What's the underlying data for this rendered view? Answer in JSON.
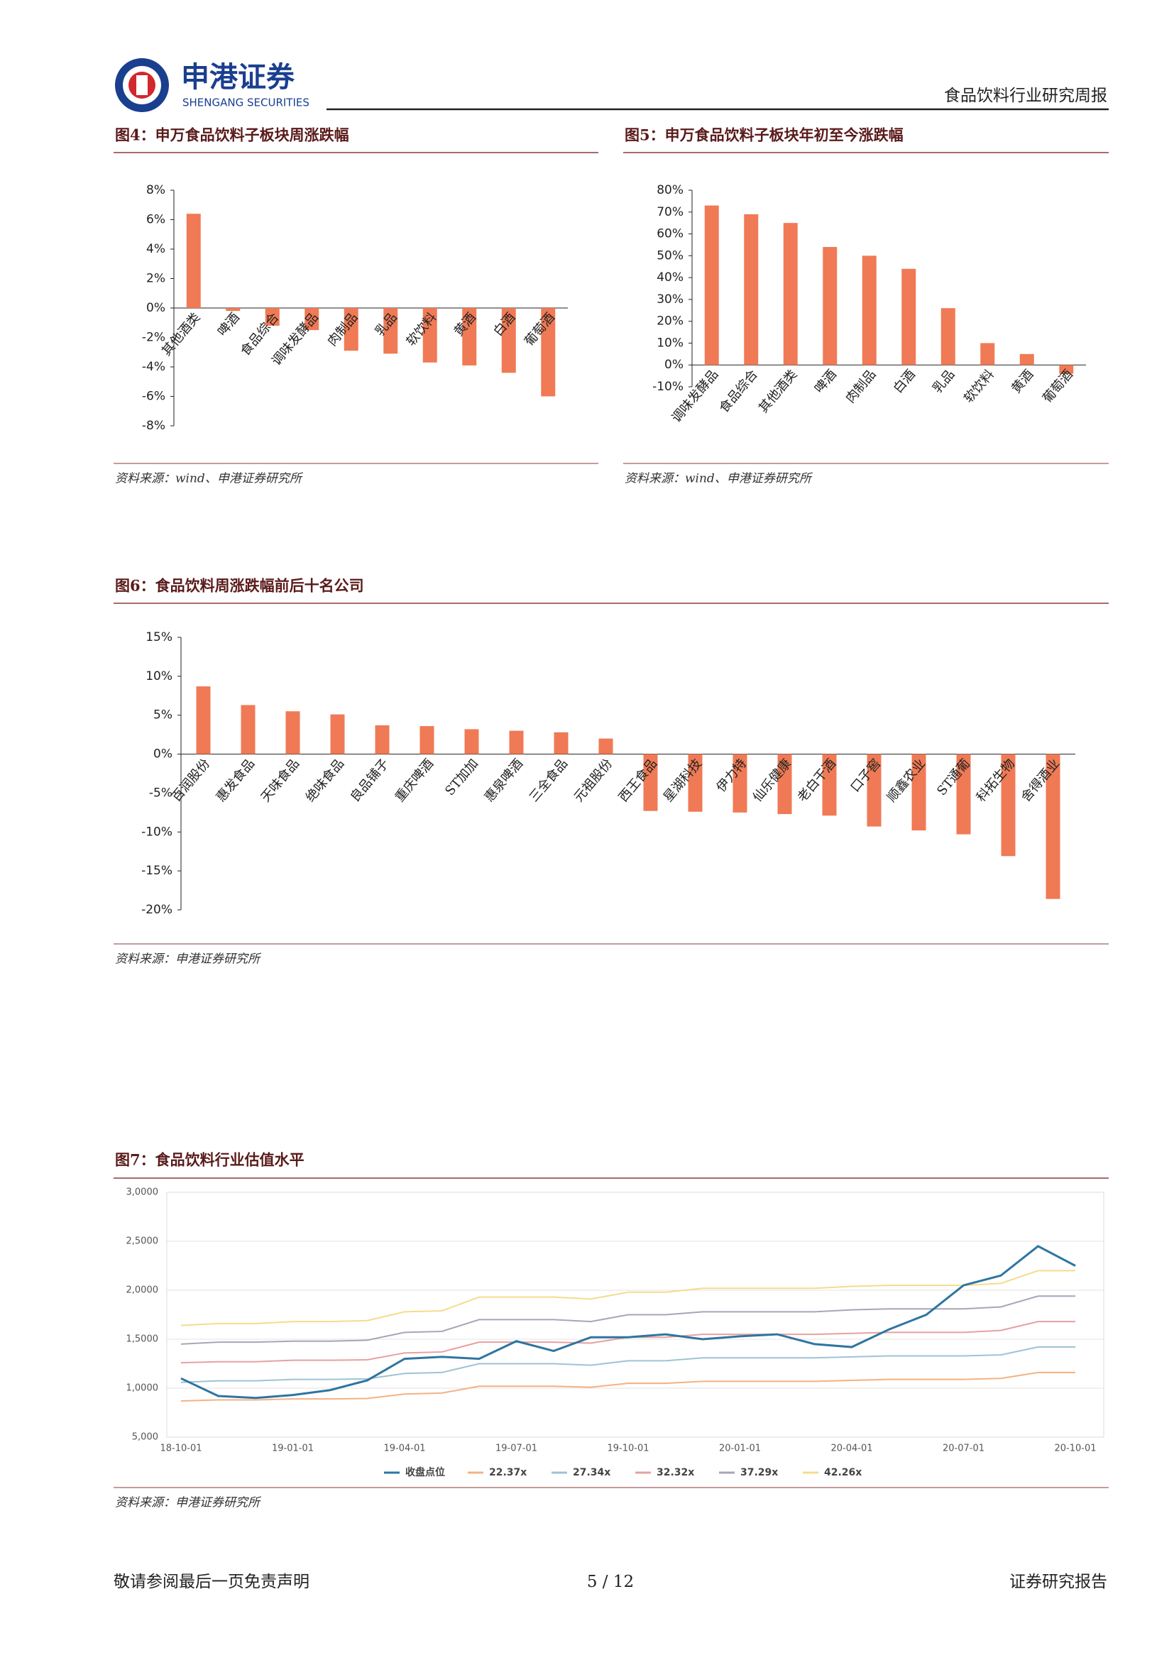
{
  "header": {
    "company": "申港证券",
    "company_en": "SHENGANG SECURITIES",
    "report": "食品饮料行业研究周报"
  },
  "chart_data": [
    {
      "type": "bar",
      "title": "图4：申万食品饮料子板块周涨跌幅",
      "source": "资料来源：wind、申港证券研究所",
      "categories": [
        "其他酒类",
        "啤酒",
        "食品综合",
        "调味发酵品",
        "肉制品",
        "乳品",
        "软饮料",
        "黄酒",
        "白酒",
        "葡萄酒"
      ],
      "values": [
        6.4,
        -0.2,
        -1.2,
        -1.5,
        -2.9,
        -3.1,
        -3.7,
        -3.9,
        -4.4,
        -6.0
      ],
      "color": "#ef7a55",
      "ylim": [
        -8,
        8
      ],
      "yticks": [
        {
          "value": -8,
          "label": "-8%"
        },
        {
          "value": -6,
          "label": "-6%"
        },
        {
          "value": -4,
          "label": "-4%"
        },
        {
          "value": -2,
          "label": "-2%"
        },
        {
          "value": 0,
          "label": "0%"
        },
        {
          "value": 2,
          "label": "2%"
        },
        {
          "value": 4,
          "label": "4%"
        },
        {
          "value": 6,
          "label": "6%"
        },
        {
          "value": 8,
          "label": "8%"
        }
      ]
    },
    {
      "type": "bar",
      "title": "图5：申万食品饮料子板块年初至今涨跌幅",
      "source": "资料来源：wind、申港证券研究所",
      "categories": [
        "调味发酵品",
        "食品综合",
        "其他酒类",
        "啤酒",
        "肉制品",
        "白酒",
        "乳品",
        "软饮料",
        "黄酒",
        "葡萄酒"
      ],
      "values": [
        73,
        69,
        65,
        54,
        50,
        44,
        26,
        10,
        5,
        -4
      ],
      "color": "#ef7a55",
      "ylim": [
        -10,
        80
      ],
      "yticks": [
        {
          "value": -10,
          "label": "-10%"
        },
        {
          "value": 0,
          "label": "0%"
        },
        {
          "value": 10,
          "label": "10%"
        },
        {
          "value": 20,
          "label": "20%"
        },
        {
          "value": 30,
          "label": "30%"
        },
        {
          "value": 40,
          "label": "40%"
        },
        {
          "value": 50,
          "label": "50%"
        },
        {
          "value": 60,
          "label": "60%"
        },
        {
          "value": 70,
          "label": "70%"
        },
        {
          "value": 80,
          "label": "80%"
        }
      ]
    },
    {
      "type": "bar",
      "title": "图6：食品饮料周涨跌幅前后十名公司",
      "source": "资料来源：申港证券研究所",
      "categories": [
        "百润股份",
        "惠发食品",
        "天味食品",
        "绝味食品",
        "良品铺子",
        "重庆啤酒",
        "ST加加",
        "惠泉啤酒",
        "三全食品",
        "元祖股份",
        "西王食品",
        "星湖科技",
        "伊力特",
        "仙乐健康",
        "老白干酒",
        "口子窖",
        "顺鑫农业",
        "ST通葡",
        "科拓生物",
        "舍得酒业"
      ],
      "values": [
        8.7,
        6.3,
        5.5,
        5.1,
        3.7,
        3.6,
        3.2,
        3.0,
        2.8,
        2.0,
        -7.3,
        -7.4,
        -7.5,
        -7.7,
        -7.9,
        -9.3,
        -9.8,
        -10.3,
        -13.1,
        -18.6
      ],
      "color": "#ef7a55",
      "ylim": [
        -20,
        15
      ],
      "yticks": [
        {
          "value": -20,
          "label": "-20%"
        },
        {
          "value": -15,
          "label": "-15%"
        },
        {
          "value": -10,
          "label": "-10%"
        },
        {
          "value": -5,
          "label": "-5%"
        },
        {
          "value": 0,
          "label": "0%"
        },
        {
          "value": 5,
          "label": "5%"
        },
        {
          "value": 10,
          "label": "10%"
        },
        {
          "value": 15,
          "label": "15%"
        }
      ]
    },
    {
      "type": "line",
      "title": "图7：食品饮料行业估值水平",
      "source": "资料来源：申港证券研究所",
      "x": [
        "18-10-01",
        null,
        null,
        "19-01-01",
        null,
        null,
        "19-04-01",
        null,
        null,
        "19-07-01",
        null,
        null,
        "19-10-01",
        null,
        null,
        "20-01-01",
        null,
        null,
        "20-04-01",
        null,
        null,
        "20-07-01",
        null,
        null,
        "20-10-01"
      ],
      "ylim": [
        5000,
        30000
      ],
      "yticks": [
        {
          "value": 5000,
          "label": "5,000"
        },
        {
          "value": 10000,
          "label": "1,0000"
        },
        {
          "value": 15000,
          "label": "1,5000"
        },
        {
          "value": 20000,
          "label": "2,0000"
        },
        {
          "value": 25000,
          "label": "2,5000"
        },
        {
          "value": 30000,
          "label": "3,0000"
        }
      ],
      "grid": true,
      "series": [
        {
          "name": "收盘点位",
          "color": "#2e75a0",
          "values": [
            11000,
            9200,
            9000,
            9300,
            9800,
            10800,
            13000,
            13200,
            13000,
            14800,
            13800,
            15200,
            15200,
            15500,
            15000,
            15300,
            15500,
            14500,
            14200,
            16000,
            17500,
            20500,
            21500,
            24500,
            22500
          ]
        },
        {
          "name": "22.37x",
          "color": "#f4b183",
          "values": [
            8700,
            8800,
            8800,
            8900,
            8900,
            8950,
            9400,
            9500,
            10200,
            10200,
            10200,
            10100,
            10500,
            10500,
            10700,
            10700,
            10700,
            10700,
            10800,
            10900,
            10900,
            10900,
            11000,
            11600,
            11600
          ]
        },
        {
          "name": "27.34x",
          "color": "#9dc3d6",
          "values": [
            10600,
            10750,
            10750,
            10900,
            10900,
            10950,
            11500,
            11600,
            12500,
            12500,
            12500,
            12350,
            12800,
            12800,
            13100,
            13100,
            13100,
            13100,
            13200,
            13300,
            13300,
            13300,
            13400,
            14200,
            14200
          ]
        },
        {
          "name": "32.32x",
          "color": "#e8a0a0",
          "values": [
            12600,
            12700,
            12700,
            12850,
            12850,
            12900,
            13600,
            13700,
            14700,
            14700,
            14700,
            14600,
            15200,
            15200,
            15500,
            15500,
            15500,
            15500,
            15600,
            15700,
            15700,
            15700,
            15900,
            16800,
            16800
          ]
        },
        {
          "name": "37.29x",
          "color": "#a6a6b8",
          "values": [
            14500,
            14700,
            14700,
            14800,
            14800,
            14900,
            15700,
            15800,
            17000,
            17000,
            17000,
            16800,
            17500,
            17500,
            17800,
            17800,
            17800,
            17800,
            18000,
            18100,
            18100,
            18100,
            18300,
            19400,
            19400
          ]
        },
        {
          "name": "42.26x",
          "color": "#f5dc8c",
          "values": [
            16400,
            16600,
            16600,
            16800,
            16800,
            16900,
            17800,
            17900,
            19300,
            19300,
            19300,
            19100,
            19800,
            19800,
            20200,
            20200,
            20200,
            20200,
            20400,
            20500,
            20500,
            20500,
            20700,
            22000,
            22000
          ]
        }
      ]
    }
  ],
  "footer": {
    "left": "敬请参阅最后一页免责声明",
    "page": "5 / 12",
    "right": "证券研究报告"
  }
}
